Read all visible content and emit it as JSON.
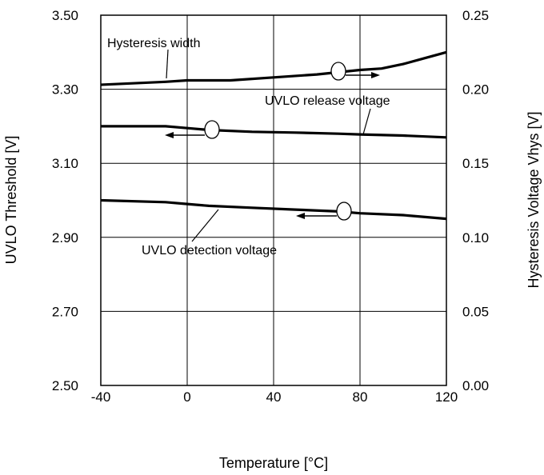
{
  "chart_data": {
    "type": "line",
    "xlabel": "Temperature [°C]",
    "ylabel_left": "UVLO Threshold [V]",
    "ylabel_right": "Hysteresis Voltage Vhys [V]",
    "xlim": [
      -40,
      120
    ],
    "ylim_left": [
      2.5,
      3.5
    ],
    "ylim_right": [
      0.0,
      0.25
    ],
    "x_ticks": [
      -40,
      0,
      40,
      80,
      120
    ],
    "x_tick_labels": [
      "-40",
      "0",
      "40",
      "80",
      "120"
    ],
    "y_ticks_left": [
      2.5,
      2.7,
      2.9,
      3.1,
      3.3,
      3.5
    ],
    "y_tick_labels_left": [
      "2.50",
      "2.70",
      "2.90",
      "3.10",
      "3.30",
      "3.50"
    ],
    "y_ticks_right": [
      0.0,
      0.05,
      0.1,
      0.15,
      0.2,
      0.25
    ],
    "y_tick_labels_right": [
      "0.00",
      "0.05",
      "0.10",
      "0.15",
      "0.20",
      "0.25"
    ],
    "grid": true,
    "series": [
      {
        "name": "UVLO release voltage",
        "axis": "left",
        "x": [
          -40,
          -10,
          0,
          10,
          30,
          50,
          70,
          80,
          100,
          120
        ],
        "y": [
          3.2,
          3.2,
          3.195,
          3.19,
          3.185,
          3.183,
          3.18,
          3.178,
          3.175,
          3.17
        ]
      },
      {
        "name": "UVLO detection voltage",
        "axis": "left",
        "x": [
          -40,
          -10,
          0,
          10,
          30,
          50,
          70,
          80,
          100,
          120
        ],
        "y": [
          3.0,
          2.995,
          2.99,
          2.985,
          2.98,
          2.975,
          2.97,
          2.965,
          2.96,
          2.95
        ]
      },
      {
        "name": "Hysteresis width",
        "axis": "right",
        "x": [
          -40,
          -10,
          0,
          20,
          40,
          60,
          80,
          90,
          100,
          110,
          120
        ],
        "y": [
          0.203,
          0.205,
          0.206,
          0.206,
          0.208,
          0.21,
          0.213,
          0.214,
          0.217,
          0.221,
          0.225
        ]
      }
    ]
  }
}
